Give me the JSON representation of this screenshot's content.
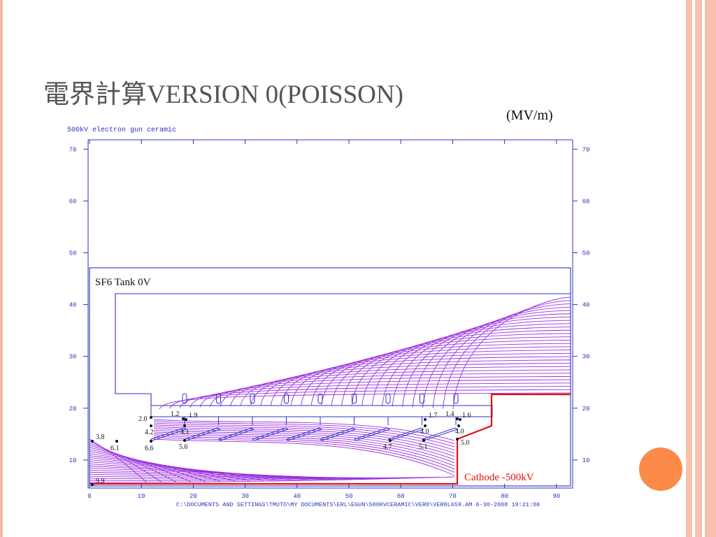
{
  "slide": {
    "title": "電界計算VERSION 0(POISSON)",
    "units": "(MV/m)"
  },
  "plot": {
    "header": "500kV electron gun ceramic",
    "footer": "C:\\DOCUMENTS AND SETTINGS\\TMUTO\\MY DOCUMENTS\\ERL\\EGUN\\500KVCERAMIC\\VER0\\VER0L659.AM  6-30-2008  19:21:06",
    "x_ticks": [
      "0",
      "10",
      "20",
      "30",
      "40",
      "50",
      "60",
      "70",
      "80",
      "90"
    ],
    "y_ticks": [
      "10",
      "20",
      "30",
      "40",
      "50",
      "60",
      "70"
    ],
    "tank_label": "SF6 Tank 0V",
    "cathode_label": "Cathode -500kV",
    "field_values": [
      "3.8",
      "6.1",
      "2.0",
      "4.2",
      "6.6",
      "1.2",
      "1.9",
      "4.1",
      "5.6",
      "1.7",
      "4.0",
      "1.4",
      "1.6",
      "4.0",
      "5.0",
      "4.7",
      "5.1",
      "9.9"
    ]
  },
  "colors": {
    "field_lines": "#9b2fe0",
    "frame": "#2b33c4",
    "cathode": "#e01010",
    "accent_circle": "#fc8b4a",
    "title": "#555555"
  }
}
